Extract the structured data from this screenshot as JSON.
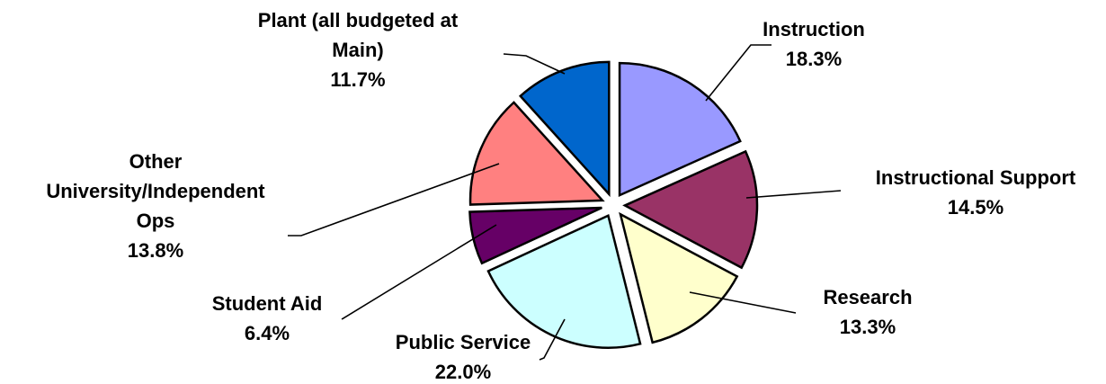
{
  "chart_data": {
    "type": "pie",
    "title": "",
    "legend": "none",
    "slices": [
      {
        "label": "Instruction",
        "value": 18.3,
        "display": "18.3%",
        "color": "#9999FF"
      },
      {
        "label": "Instructional Support",
        "value": 14.5,
        "display": "14.5%",
        "color": "#993366"
      },
      {
        "label": "Research",
        "value": 13.3,
        "display": "13.3%",
        "color": "#FFFFCC"
      },
      {
        "label": "Public Service",
        "value": 22.0,
        "display": "22.0%",
        "color": "#CCFFFF"
      },
      {
        "label": "Student Aid",
        "value": 6.4,
        "display": "6.4%",
        "color": "#660066"
      },
      {
        "label": "Other University/Independent Ops",
        "value": 13.8,
        "display": "13.8%",
        "color": "#FF8080"
      },
      {
        "label": "Plant (all budgeted at Main)",
        "value": 11.7,
        "display": "11.7%",
        "color": "#0066CC"
      }
    ]
  }
}
